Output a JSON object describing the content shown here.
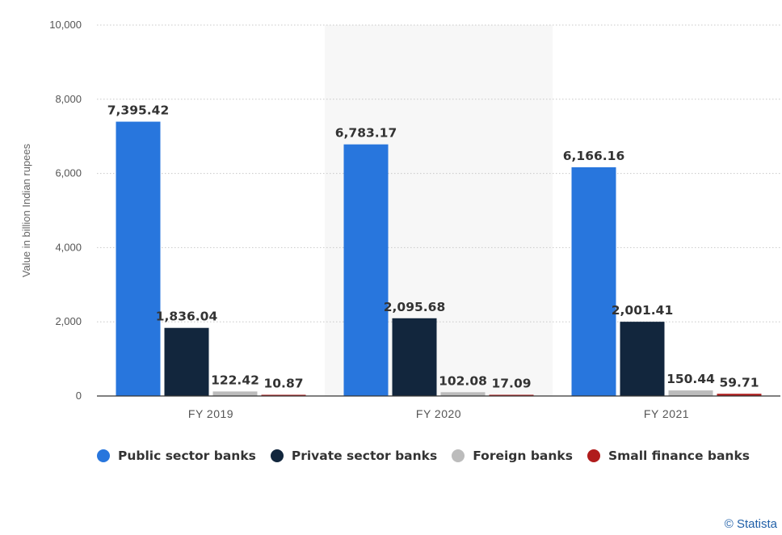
{
  "chart_data": {
    "type": "bar",
    "categories": [
      "FY 2019",
      "FY 2020",
      "FY 2021"
    ],
    "series": [
      {
        "name": "Public sector banks",
        "color": "#2876dd",
        "values": [
          7395.42,
          6783.17,
          6166.16
        ],
        "labels": [
          "7,395.42",
          "6,783.17",
          "6,166.16"
        ]
      },
      {
        "name": "Private sector banks",
        "color": "#12263d",
        "values": [
          1836.04,
          2095.68,
          2001.41
        ],
        "labels": [
          "1,836.04",
          "2,095.68",
          "2,001.41"
        ]
      },
      {
        "name": "Foreign banks",
        "color": "#bcbcbc",
        "values": [
          122.42,
          102.08,
          150.44
        ],
        "labels": [
          "122.42",
          "102.08",
          "150.44"
        ]
      },
      {
        "name": "Small finance banks",
        "color": "#b01c1c",
        "values": [
          10.87,
          17.09,
          59.71
        ],
        "labels": [
          "10.87",
          "17.09",
          "59.71"
        ]
      }
    ],
    "ylabel": "Value in billion Indian rupees",
    "ylim": [
      0,
      10000
    ],
    "yticks": [
      0,
      2000,
      4000,
      6000,
      8000,
      10000
    ],
    "ytick_labels": [
      "0",
      "2,000",
      "4,000",
      "6,000",
      "8,000",
      "10,000"
    ],
    "grid": true,
    "highlighted_category": "FY 2020",
    "legend_position": "bottom-left"
  },
  "credit": "© Statista"
}
